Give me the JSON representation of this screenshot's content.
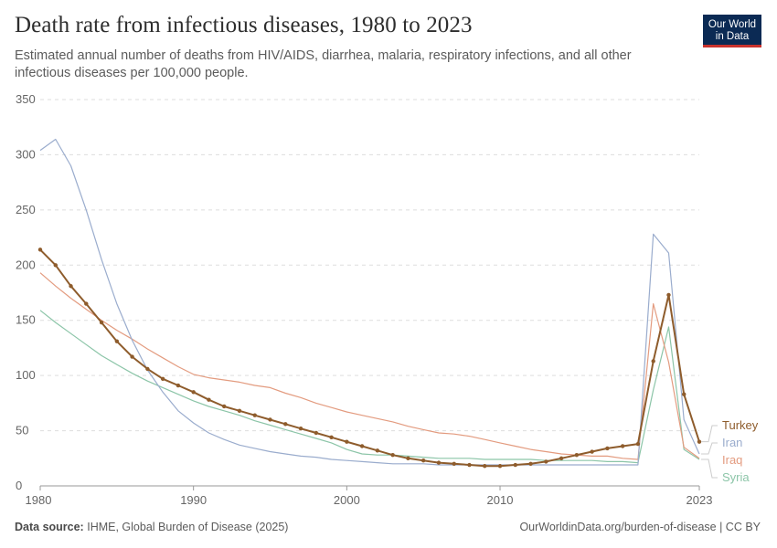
{
  "header": {
    "title": "Death rate from infectious diseases, 1980 to 2023",
    "subtitle": "Estimated annual number of deaths from HIV/AIDS, diarrhea, malaria, respiratory infections, and all other infectious diseases per 100,000 people.",
    "logo_line1": "Our World",
    "logo_line2": "in Data"
  },
  "footer": {
    "source_label": "Data source:",
    "source_text": "IHME, Global Burden of Disease (2025)",
    "url_text": "OurWorldinData.org/burden-of-disease | CC BY"
  },
  "colors": {
    "accent": "#0b2a54",
    "logo_red": "#c9322d"
  },
  "chart_data": {
    "type": "line",
    "title": "Death rate from infectious diseases, 1980 to 2023",
    "xlim": [
      1980,
      2023
    ],
    "ylim": [
      0,
      350
    ],
    "x_ticks": [
      1980,
      1990,
      2000,
      2010,
      2023
    ],
    "y_ticks": [
      0,
      50,
      100,
      150,
      200,
      250,
      300,
      350
    ],
    "grid": "horizontal dashed",
    "legend": "right (end labels)",
    "x": [
      1980,
      1981,
      1982,
      1983,
      1984,
      1985,
      1986,
      1987,
      1988,
      1989,
      1990,
      1991,
      1992,
      1993,
      1994,
      1995,
      1996,
      1997,
      1998,
      1999,
      2000,
      2001,
      2002,
      2003,
      2004,
      2005,
      2006,
      2007,
      2008,
      2009,
      2010,
      2011,
      2012,
      2013,
      2014,
      2015,
      2016,
      2017,
      2018,
      2019,
      2020,
      2021,
      2022,
      2023
    ],
    "series": [
      {
        "name": "Turkey",
        "color": "#8e5c2c",
        "markers": true,
        "values": [
          214,
          200,
          181,
          165,
          148,
          131,
          117,
          106,
          97,
          91,
          85,
          78,
          72,
          68,
          64,
          60,
          56,
          52,
          48,
          44,
          40,
          36,
          32,
          28,
          25,
          23,
          21,
          20,
          19,
          18,
          18,
          19,
          20,
          22,
          25,
          28,
          31,
          34,
          36,
          38,
          113,
          173,
          83,
          40
        ]
      },
      {
        "name": "Iran",
        "color": "#9aaccd",
        "markers": false,
        "values": [
          304,
          314,
          290,
          250,
          205,
          165,
          132,
          105,
          85,
          68,
          57,
          48,
          42,
          37,
          34,
          31,
          29,
          27,
          26,
          24,
          23,
          22,
          21,
          20,
          20,
          20,
          19,
          19,
          19,
          19,
          19,
          19,
          19,
          19,
          19,
          19,
          19,
          19,
          19,
          19,
          228,
          211,
          60,
          29
        ]
      },
      {
        "name": "Iraq",
        "color": "#e39b7f",
        "markers": false,
        "values": [
          193,
          181,
          170,
          160,
          150,
          141,
          133,
          124,
          116,
          108,
          101,
          98,
          96,
          94,
          91,
          89,
          84,
          80,
          75,
          71,
          67,
          64,
          61,
          58,
          54,
          51,
          48,
          47,
          45,
          42,
          39,
          36,
          33,
          31,
          29,
          28,
          27,
          27,
          25,
          24,
          165,
          112,
          35,
          25
        ]
      },
      {
        "name": "Syria",
        "color": "#8cc5a8",
        "markers": false,
        "values": [
          159,
          148,
          138,
          128,
          118,
          110,
          102,
          95,
          89,
          83,
          77,
          72,
          68,
          64,
          59,
          55,
          51,
          47,
          43,
          39,
          33,
          29,
          28,
          28,
          27,
          26,
          25,
          25,
          25,
          24,
          24,
          24,
          24,
          23,
          23,
          23,
          23,
          22,
          22,
          21,
          87,
          144,
          33,
          24
        ]
      }
    ]
  }
}
